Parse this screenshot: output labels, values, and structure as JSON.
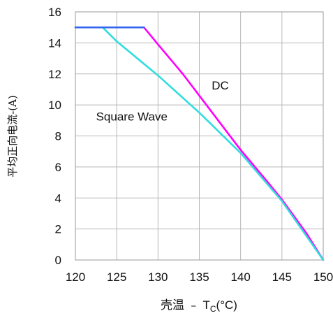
{
  "chart_data": {
    "type": "line",
    "xlabel": {
      "prefix": "壳温 ﹣ T",
      "sub": "C",
      "suffix": "(°C)"
    },
    "ylabel": "平均正向电流-(A)",
    "xlim": [
      120,
      150
    ],
    "ylim": [
      0,
      16
    ],
    "x_ticks": [
      120,
      125,
      130,
      135,
      140,
      145,
      150
    ],
    "y_ticks": [
      0,
      2,
      4,
      6,
      8,
      10,
      12,
      14,
      16
    ],
    "grid": true,
    "series": [
      {
        "name": "DC",
        "color": "#ff00ff",
        "points": [
          [
            128.3,
            15.0
          ],
          [
            130,
            13.9
          ],
          [
            133,
            12.0
          ],
          [
            135,
            10.6
          ],
          [
            138,
            8.5
          ],
          [
            140,
            7.1
          ],
          [
            143,
            5.2
          ],
          [
            145,
            3.9
          ],
          [
            148,
            1.7
          ],
          [
            150,
            0
          ]
        ]
      },
      {
        "name": "Square Wave",
        "color": "#33dddd",
        "points": [
          [
            123.3,
            15.0
          ],
          [
            125,
            14.1
          ],
          [
            127.5,
            13.0
          ],
          [
            130,
            11.9
          ],
          [
            135,
            9.5
          ],
          [
            140,
            6.9
          ],
          [
            145,
            3.8
          ],
          [
            150,
            0
          ]
        ]
      },
      {
        "name": "",
        "color": "#3366ee",
        "points": [
          [
            120,
            15.0
          ],
          [
            128.3,
            15.0
          ]
        ]
      }
    ],
    "annotations": [
      {
        "text": "DC",
        "x": 136.5,
        "y": 11.0
      },
      {
        "text": "Square Wave",
        "x": 122.5,
        "y": 9.0
      }
    ]
  }
}
